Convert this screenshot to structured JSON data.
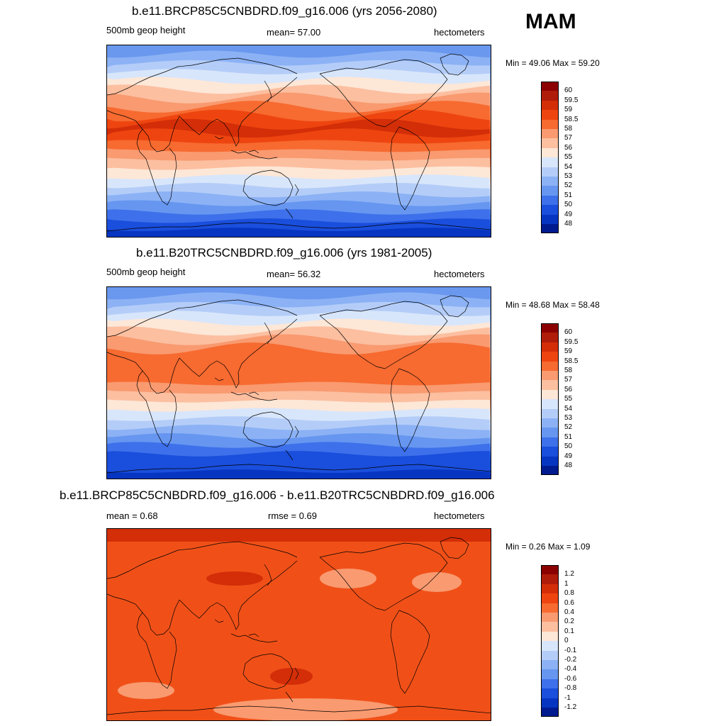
{
  "season": "MAM",
  "panels": [
    {
      "title": "b.e11.BRCP85C5CNBDRD.f09_g16.006 (yrs 2056-2080)",
      "left_label": "500mb geop height",
      "center_label": "mean=  57.00",
      "units": "hectometers",
      "minmax": "Min =  49.06 Max =  59.20",
      "colorbar_labels": [
        "60",
        "59.5",
        "59",
        "58.5",
        "58",
        "57",
        "56",
        "55",
        "54",
        "53",
        "52",
        "51",
        "50",
        "49",
        "48"
      ],
      "colorbar_colors": [
        "#8b0000",
        "#b01c0a",
        "#d32e08",
        "#ee4510",
        "#f76a30",
        "#f99a70",
        "#fcbfa0",
        "#fde7d7",
        "#d8e6fb",
        "#b4cdf8",
        "#8cb2f5",
        "#6696f0",
        "#3d70ea",
        "#1a4edc",
        "#0635c2",
        "#001a8f"
      ]
    },
    {
      "title": "b.e11.B20TRC5CNBDRD.f09_g16.006 (yrs 1981-2005)",
      "left_label": "500mb geop height",
      "center_label": "mean=  56.32",
      "units": "hectometers",
      "minmax": "Min =  48.68 Max =  58.48",
      "colorbar_labels": [
        "60",
        "59.5",
        "59",
        "58.5",
        "58",
        "57",
        "56",
        "55",
        "54",
        "53",
        "52",
        "51",
        "50",
        "49",
        "48"
      ],
      "colorbar_colors": [
        "#8b0000",
        "#b01c0a",
        "#d32e08",
        "#ee4510",
        "#f76a30",
        "#f99a70",
        "#fcbfa0",
        "#fde7d7",
        "#d8e6fb",
        "#b4cdf8",
        "#8cb2f5",
        "#6696f0",
        "#3d70ea",
        "#1a4edc",
        "#0635c2",
        "#001a8f"
      ]
    },
    {
      "title": "b.e11.BRCP85C5CNBDRD.f09_g16.006 - b.e11.B20TRC5CNBDRD.f09_g16.006",
      "left_label": "mean =   0.68",
      "center_label": "rmse =   0.69",
      "units": "hectometers",
      "minmax": "Min =   0.26 Max =   1.09",
      "colorbar_labels": [
        "1.2",
        "1",
        "0.8",
        "0.6",
        "0.4",
        "0.2",
        "0.1",
        "0",
        "-0.1",
        "-0.2",
        "-0.4",
        "-0.6",
        "-0.8",
        "-1",
        "-1.2"
      ],
      "colorbar_colors": [
        "#8b0000",
        "#b01c0a",
        "#d32e08",
        "#ee4510",
        "#f76a30",
        "#f99a70",
        "#fcbfa0",
        "#fde7d7",
        "#d8e6fb",
        "#b4cdf8",
        "#8cb2f5",
        "#6696f0",
        "#3d70ea",
        "#1a4edc",
        "#0635c2",
        "#001a8f"
      ]
    }
  ],
  "map_palette": {
    "band_colors_top_panels": [
      "#6a98ee",
      "#8cb2f5",
      "#b4cdf8",
      "#d8e6fb",
      "#fde7d7",
      "#fcbfa0",
      "#f99a70",
      "#f76a30",
      "#ee4510",
      "#d32e08",
      "#ee4510",
      "#f76a30",
      "#f99a70",
      "#fcbfa0",
      "#fde7d7",
      "#d8e6fb",
      "#b4cdf8",
      "#8cb2f5",
      "#6696f0",
      "#3d70ea",
      "#1a4edc",
      "#0635c2"
    ],
    "band_colors_middle_panel": [
      "#6a98ee",
      "#8cb2f5",
      "#b4cdf8",
      "#d8e6fb",
      "#fde7d7",
      "#fcbfa0",
      "#f99a70",
      "#f76a30",
      "#f76a30",
      "#f76a30",
      "#f76a30",
      "#f99a70",
      "#fcbfa0",
      "#fde7d7",
      "#d8e6fb",
      "#b4cdf8",
      "#8cb2f5",
      "#6696f0",
      "#3d70ea",
      "#1a4edc",
      "#1a4edc",
      "#0635c2"
    ],
    "diff_base_color": "#f05018",
    "diff_light_color": "#f99a70",
    "diff_dark_color": "#d32e08",
    "coastline_color": "#000000"
  }
}
